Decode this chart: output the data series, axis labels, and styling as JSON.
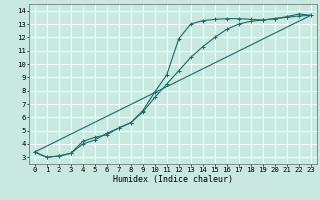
{
  "xlabel": "Humidex (Indice chaleur)",
  "bg_color": "#c8e8e0",
  "grid_color": "#ffffff",
  "line_color": "#1a6b6b",
  "xlim": [
    -0.5,
    23.5
  ],
  "ylim": [
    2.5,
    14.5
  ],
  "xticks": [
    0,
    1,
    2,
    3,
    4,
    5,
    6,
    7,
    8,
    9,
    10,
    11,
    12,
    13,
    14,
    15,
    16,
    17,
    18,
    19,
    20,
    21,
    22,
    23
  ],
  "yticks": [
    3,
    4,
    5,
    6,
    7,
    8,
    9,
    10,
    11,
    12,
    13,
    14
  ],
  "curve1_x": [
    0,
    1,
    2,
    3,
    4,
    5,
    6,
    7,
    8,
    9,
    10,
    11,
    12,
    13,
    14,
    15,
    16,
    17,
    18,
    19,
    20,
    21,
    22,
    23
  ],
  "curve1_y": [
    3.4,
    3.0,
    3.1,
    3.3,
    4.2,
    4.5,
    4.7,
    5.2,
    5.6,
    6.5,
    7.9,
    9.2,
    11.9,
    13.0,
    13.25,
    13.35,
    13.4,
    13.4,
    13.35,
    13.3,
    13.4,
    13.55,
    13.75,
    13.65
  ],
  "curve2_x": [
    0,
    1,
    2,
    3,
    4,
    5,
    6,
    7,
    8,
    9,
    10,
    11,
    12,
    13,
    14,
    15,
    16,
    17,
    18,
    19,
    20,
    21,
    22,
    23
  ],
  "curve2_y": [
    3.4,
    3.0,
    3.1,
    3.3,
    4.0,
    4.3,
    4.8,
    5.2,
    5.6,
    6.4,
    7.5,
    8.5,
    9.5,
    10.5,
    11.3,
    12.0,
    12.6,
    13.0,
    13.2,
    13.3,
    13.4,
    13.5,
    13.6,
    13.65
  ],
  "line_x": [
    0,
    23
  ],
  "line_y": [
    3.4,
    13.65
  ]
}
